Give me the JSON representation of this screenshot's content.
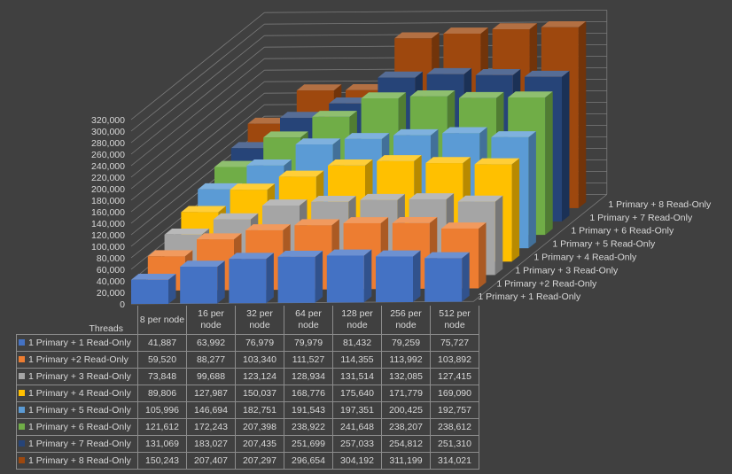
{
  "chart_data": {
    "type": "bar",
    "style": "3d-column",
    "categories": [
      "8 per node",
      "16 per node",
      "32 per node",
      "64 per node",
      "128 per node",
      "256 per node",
      "512 per node"
    ],
    "xlabel": "Threads",
    "ylim": [
      0,
      320000
    ],
    "yticks": [
      "0",
      "20,000",
      "40,000",
      "60,000",
      "80,000",
      "100,000",
      "120,000",
      "140,000",
      "160,000",
      "180,000",
      "200,000",
      "220,000",
      "240,000",
      "260,000",
      "280,000",
      "300,000",
      "320,000"
    ],
    "grid": true,
    "legend": "data-table",
    "series": [
      {
        "name": "1 Primary + 1 Read-Only",
        "color": "#4472c4",
        "values": [
          41887,
          63992,
          76979,
          79979,
          81432,
          79259,
          75727
        ],
        "labels": [
          "41,887",
          "63,992",
          "76,979",
          "79,979",
          "81,432",
          "79,259",
          "75,727"
        ]
      },
      {
        "name": "1 Primary +2 Read-Only",
        "color": "#ed7d31",
        "values": [
          59520,
          88277,
          103340,
          111527,
          114355,
          113992,
          103892
        ],
        "labels": [
          "59,520",
          "88,277",
          "103,340",
          "111,527",
          "114,355",
          "113,992",
          "103,892"
        ]
      },
      {
        "name": "1 Primary + 3 Read-Only",
        "color": "#a5a5a5",
        "values": [
          73848,
          99688,
          123124,
          128934,
          131514,
          132085,
          127415
        ],
        "labels": [
          "73,848",
          "99,688",
          "123,124",
          "128,934",
          "131,514",
          "132,085",
          "127,415"
        ]
      },
      {
        "name": "1 Primary + 4 Read-Only",
        "color": "#ffc000",
        "values": [
          89806,
          127987,
          150037,
          168776,
          175640,
          171779,
          169090
        ],
        "labels": [
          "89,806",
          "127,987",
          "150,037",
          "168,776",
          "175,640",
          "171,779",
          "169,090"
        ]
      },
      {
        "name": "1 Primary + 5 Read-Only",
        "color": "#5b9bd5",
        "values": [
          105996,
          146694,
          182751,
          191543,
          197351,
          200425,
          192757
        ],
        "labels": [
          "105,996",
          "146,694",
          "182,751",
          "191,543",
          "197,351",
          "200,425",
          "192,757"
        ]
      },
      {
        "name": "1 Primary + 6 Read-Only",
        "color": "#70ad47",
        "values": [
          121612,
          172243,
          207398,
          238922,
          241648,
          238207,
          238612
        ],
        "labels": [
          "121,612",
          "172,243",
          "207,398",
          "238,922",
          "241,648",
          "238,207",
          "238,612"
        ]
      },
      {
        "name": "1 Primary + 7 Read-Only",
        "color": "#264478",
        "values": [
          131069,
          183027,
          207435,
          251699,
          257033,
          254812,
          251310
        ],
        "labels": [
          "131,069",
          "183,027",
          "207,435",
          "251,699",
          "257,033",
          "254,812",
          "251,310"
        ]
      },
      {
        "name": "1 Primary + 8 Read-Only",
        "color": "#9e480e",
        "values": [
          150243,
          207407,
          207297,
          296654,
          304192,
          311199,
          314021
        ],
        "labels": [
          "150,243",
          "207,407",
          "207,297",
          "296,654",
          "304,192",
          "311,199",
          "314,021"
        ]
      }
    ]
  }
}
